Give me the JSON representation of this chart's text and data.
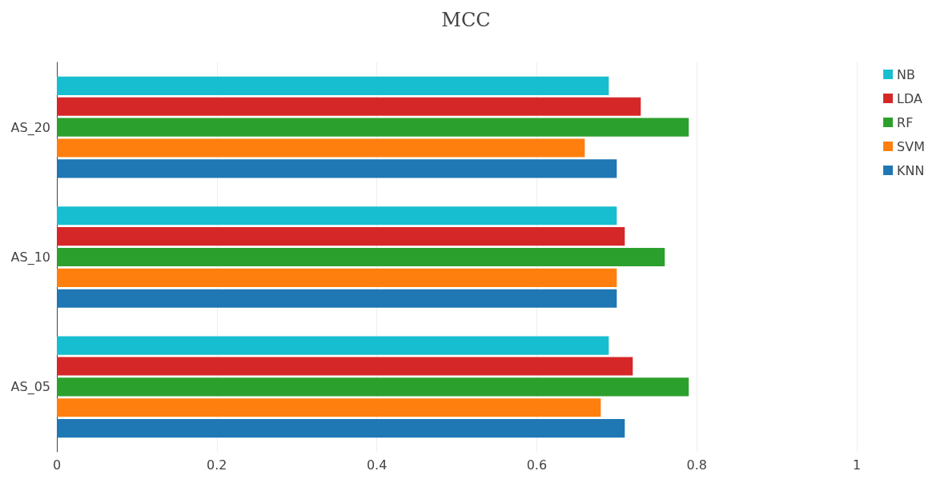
{
  "chart_data": {
    "type": "bar",
    "orientation": "horizontal",
    "title": "MCC",
    "categories": [
      "AS_20",
      "AS_10",
      "AS_05"
    ],
    "series": [
      {
        "name": "NB",
        "color": "#17becf",
        "values": [
          0.69,
          0.7,
          0.69
        ]
      },
      {
        "name": "LDA",
        "color": "#d62728",
        "values": [
          0.73,
          0.71,
          0.72
        ]
      },
      {
        "name": "RF",
        "color": "#2ca02c",
        "values": [
          0.79,
          0.76,
          0.79
        ]
      },
      {
        "name": "SVM",
        "color": "#ff7f0e",
        "values": [
          0.66,
          0.7,
          0.68
        ]
      },
      {
        "name": "KNN",
        "color": "#1f77b4",
        "values": [
          0.7,
          0.7,
          0.71
        ]
      }
    ],
    "xlim": [
      0,
      1
    ],
    "xticks": [
      0,
      0.2,
      0.4,
      0.6,
      0.8,
      1
    ],
    "grid": "x",
    "legend": "top right"
  }
}
